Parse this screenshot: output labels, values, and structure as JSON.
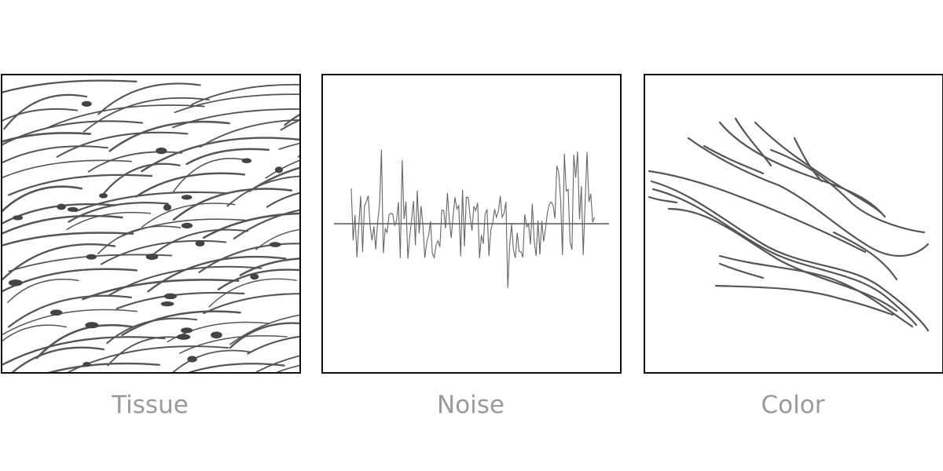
{
  "panels": [
    {
      "label": "Tissue"
    },
    {
      "label": "Noise"
    },
    {
      "label": "Color"
    }
  ],
  "stroke_color": "#555555",
  "label_color": "#9a9a9a"
}
